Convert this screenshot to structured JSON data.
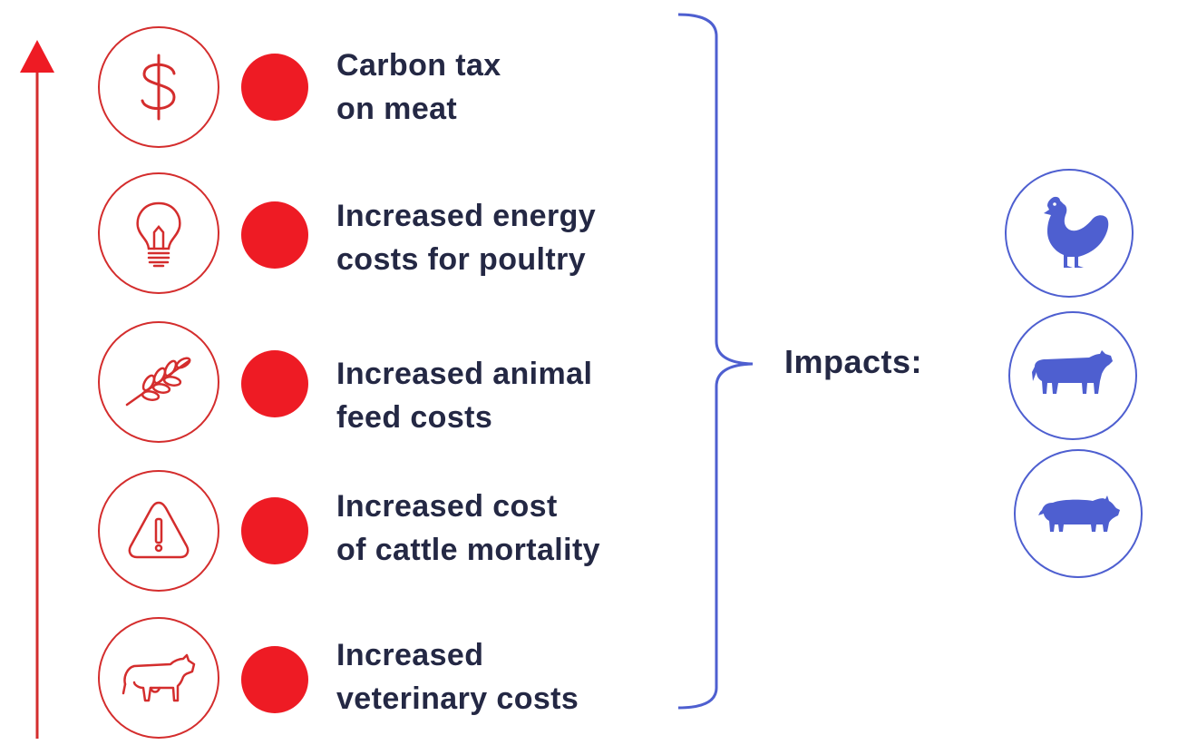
{
  "colors": {
    "red": "#d42d2d",
    "dot_red": "#ee1b24",
    "blue": "#4e5fd0",
    "text": "#242844"
  },
  "drivers": [
    {
      "icon": "dollar-icon",
      "line1": "Carbon tax",
      "line2": "on meat"
    },
    {
      "icon": "lightbulb-icon",
      "line1": "Increased energy",
      "line2": "costs for poultry"
    },
    {
      "icon": "wheat-icon",
      "line1": "Increased animal",
      "line2": "feed costs"
    },
    {
      "icon": "warning-icon",
      "line1": "Increased cost",
      "line2": "of cattle mortality"
    },
    {
      "icon": "cow-outline-icon",
      "line1": "Increased",
      "line2": "veterinary costs"
    }
  ],
  "impacts": {
    "label": "Impacts:",
    "animals": [
      "chicken-icon",
      "cow-icon",
      "pig-icon"
    ]
  }
}
